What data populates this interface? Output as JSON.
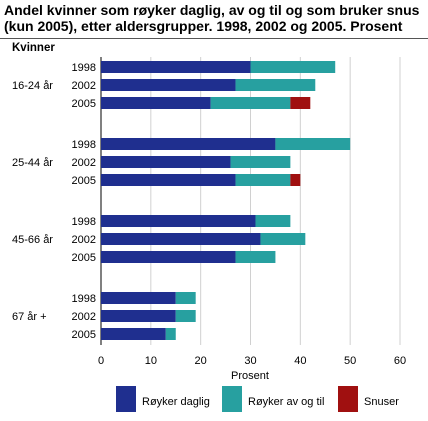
{
  "chart_data": {
    "type": "bar",
    "orientation": "horizontal",
    "stacked": true,
    "title": "Andel kvinner som røyker daglig, av og til og som bruker snus (kun 2005), etter aldersgrupper. 1998, 2002 og 2005. Prosent",
    "section_label": "Kvinner",
    "xlabel": "Prosent",
    "xlim": [
      0,
      60
    ],
    "xticks": [
      0,
      10,
      20,
      30,
      40,
      50,
      60
    ],
    "grid": "vertical",
    "legend_position": "bottom",
    "series": [
      {
        "name": "Røyker daglig",
        "color": "#1f2f8f"
      },
      {
        "name": "Røyker av og til",
        "color": "#27a0a0"
      },
      {
        "name": "Snuser",
        "color": "#a01010"
      }
    ],
    "groups": [
      {
        "label": "16-24 år",
        "rows": [
          {
            "year": "1998",
            "values": [
              30,
              17,
              0
            ]
          },
          {
            "year": "2002",
            "values": [
              27,
              16,
              0
            ]
          },
          {
            "year": "2005",
            "values": [
              22,
              16,
              4
            ]
          }
        ]
      },
      {
        "label": "25-44 år",
        "rows": [
          {
            "year": "1998",
            "values": [
              35,
              15,
              0
            ]
          },
          {
            "year": "2002",
            "values": [
              26,
              12,
              0
            ]
          },
          {
            "year": "2005",
            "values": [
              27,
              11,
              2
            ]
          }
        ]
      },
      {
        "label": "45-66 år",
        "rows": [
          {
            "year": "1998",
            "values": [
              31,
              7,
              0
            ]
          },
          {
            "year": "2002",
            "values": [
              32,
              9,
              0
            ]
          },
          {
            "year": "2005",
            "values": [
              27,
              8,
              0
            ]
          }
        ]
      },
      {
        "label": "67 år +",
        "rows": [
          {
            "year": "1998",
            "values": [
              15,
              4,
              0
            ]
          },
          {
            "year": "2002",
            "values": [
              15,
              4,
              0
            ]
          },
          {
            "year": "2005",
            "values": [
              13,
              2,
              0
            ]
          }
        ]
      }
    ]
  }
}
